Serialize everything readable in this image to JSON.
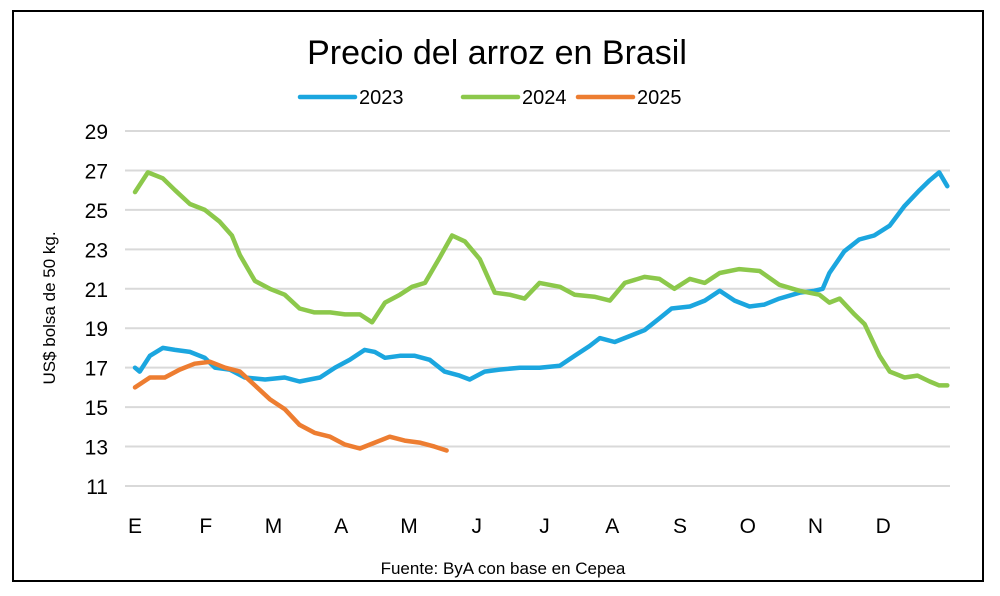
{
  "chart_data": {
    "type": "line",
    "title": "Precio del arroz en Brasil",
    "xlabel": "",
    "ylabel": "US$ bolsa de 50 kg.",
    "source": "Fuente: ByA con base en Cepea",
    "ylim": [
      11,
      29
    ],
    "yticks": [
      11,
      13,
      15,
      17,
      19,
      21,
      23,
      25,
      27,
      29
    ],
    "xlim": [
      0,
      12
    ],
    "x_unit": "months since start of year",
    "month_labels": [
      "E",
      "F",
      "M",
      "A",
      "M",
      "J",
      "J",
      "A",
      "S",
      "O",
      "N",
      "D"
    ],
    "grid": true,
    "legend_position": "top",
    "series": [
      {
        "name": "2023",
        "color": "#1ba6df",
        "x": [
          0,
          0.07,
          0.22,
          0.41,
          0.59,
          0.81,
          1.03,
          1.18,
          1.4,
          1.62,
          1.92,
          2.21,
          2.43,
          2.73,
          2.95,
          3.17,
          3.39,
          3.54,
          3.69,
          3.91,
          4.13,
          4.35,
          4.57,
          4.79,
          4.94,
          5.16,
          5.38,
          5.68,
          5.97,
          6.27,
          6.49,
          6.71,
          6.86,
          7.08,
          7.3,
          7.52,
          7.74,
          7.92,
          8.19,
          8.41,
          8.63,
          8.85,
          9.07,
          9.29,
          9.51,
          9.81,
          10.03,
          10.15,
          10.25,
          10.47,
          10.69,
          10.91,
          11.14,
          11.36,
          11.58,
          11.73,
          11.87,
          11.99
        ],
        "y": [
          17.0,
          16.8,
          17.6,
          18.0,
          17.9,
          17.8,
          17.5,
          17.0,
          16.9,
          16.5,
          16.4,
          16.5,
          16.3,
          16.5,
          17.0,
          17.4,
          17.9,
          17.8,
          17.5,
          17.6,
          17.6,
          17.4,
          16.8,
          16.6,
          16.4,
          16.8,
          16.9,
          17.0,
          17.0,
          17.1,
          17.6,
          18.1,
          18.5,
          18.3,
          18.6,
          18.9,
          19.5,
          20.0,
          20.1,
          20.4,
          20.9,
          20.4,
          20.1,
          20.2,
          20.5,
          20.8,
          20.9,
          21.0,
          21.8,
          22.9,
          23.5,
          23.7,
          24.2,
          25.2,
          26.0,
          26.5,
          26.9,
          26.2
        ]
      },
      {
        "name": "2024",
        "color": "#8cc84b",
        "x": [
          0,
          0.19,
          0.41,
          0.59,
          0.81,
          1.03,
          1.25,
          1.43,
          1.55,
          1.77,
          1.99,
          2.21,
          2.43,
          2.65,
          2.88,
          3.1,
          3.32,
          3.5,
          3.69,
          3.91,
          4.09,
          4.28,
          4.5,
          4.68,
          4.87,
          5.09,
          5.31,
          5.53,
          5.75,
          5.97,
          6.27,
          6.49,
          6.78,
          7.01,
          7.23,
          7.52,
          7.74,
          7.96,
          8.19,
          8.41,
          8.63,
          8.92,
          9.22,
          9.51,
          9.81,
          10.1,
          10.25,
          10.4,
          10.62,
          10.77,
          10.99,
          11.14,
          11.36,
          11.55,
          11.73,
          11.87,
          11.99
        ],
        "y": [
          25.9,
          26.9,
          26.6,
          26.0,
          25.3,
          25.0,
          24.4,
          23.7,
          22.7,
          21.4,
          21.0,
          20.7,
          20.0,
          19.8,
          19.8,
          19.7,
          19.7,
          19.3,
          20.3,
          20.7,
          21.1,
          21.3,
          22.6,
          23.7,
          23.4,
          22.5,
          20.8,
          20.7,
          20.5,
          21.3,
          21.1,
          20.7,
          20.6,
          20.4,
          21.3,
          21.6,
          21.5,
          21.0,
          21.5,
          21.3,
          21.8,
          22.0,
          21.9,
          21.2,
          20.9,
          20.7,
          20.3,
          20.5,
          19.7,
          19.2,
          17.6,
          16.8,
          16.5,
          16.6,
          16.3,
          16.1,
          16.1
        ]
      },
      {
        "name": "2025",
        "color": "#ed7d31",
        "x": [
          0,
          0.22,
          0.44,
          0.66,
          0.88,
          1.11,
          1.33,
          1.55,
          1.77,
          1.99,
          2.21,
          2.43,
          2.65,
          2.88,
          3.1,
          3.32,
          3.54,
          3.76,
          3.98,
          4.2,
          4.42,
          4.6
        ],
        "y": [
          16.0,
          16.5,
          16.5,
          16.9,
          17.2,
          17.3,
          17.0,
          16.8,
          16.1,
          15.4,
          14.9,
          14.1,
          13.7,
          13.5,
          13.1,
          12.9,
          13.2,
          13.5,
          13.3,
          13.2,
          13.0,
          12.8
        ]
      }
    ]
  }
}
